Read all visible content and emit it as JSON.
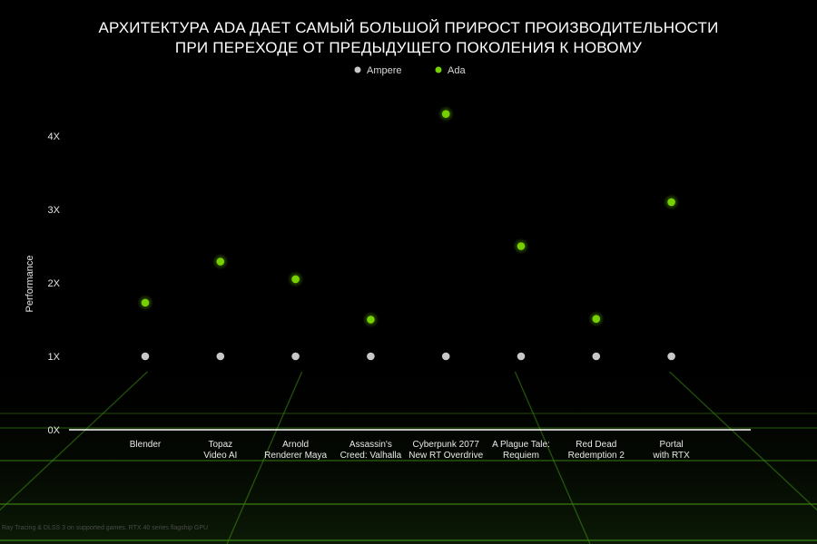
{
  "title": [
    "АРХИТЕКТУРА ADA ДАЕТ САМЫЙ БОЛЬШОЙ ПРИРОСТ ПРОИЗВОДИТЕЛЬНОСТИ",
    "ПРИ ПЕРЕХОДЕ ОТ ПРЕДЫДУЩЕГО ПОКОЛЕНИЯ К НОВОМУ"
  ],
  "footnote": "Ray Tracing & DLSS 3 on supported games. RTX 40 series flagship GPU",
  "colors": {
    "background": "#000000",
    "ampere": "#c8c8c8",
    "ada": "#76d000",
    "grid": "#3c8a14",
    "axis": "#ffffff"
  },
  "chart_data": {
    "type": "scatter",
    "ylabel": "Performance",
    "xlabel": "",
    "ylim": [
      0,
      4.5
    ],
    "yticks": [
      {
        "value": 0,
        "label": "0X"
      },
      {
        "value": 1,
        "label": "1X"
      },
      {
        "value": 2,
        "label": "2X"
      },
      {
        "value": 3,
        "label": "3X"
      },
      {
        "value": 4,
        "label": "4X"
      }
    ],
    "categories": [
      [
        "Blender"
      ],
      [
        "Topaz",
        "Video AI"
      ],
      [
        "Arnold",
        "Renderer Maya"
      ],
      [
        "Assassin's",
        "Creed: Valhalla"
      ],
      [
        "Cyberpunk 2077",
        "New RT Overdrive"
      ],
      [
        "A Plague Tale:",
        "Requiem"
      ],
      [
        "Red Dead",
        "Redemption 2"
      ],
      [
        "Portal",
        "with RTX"
      ]
    ],
    "series": [
      {
        "name": "Ampere",
        "color": "#c8c8c8",
        "values": [
          1,
          1,
          1,
          1,
          1,
          1,
          1,
          1
        ]
      },
      {
        "name": "Ada",
        "color": "#76d000",
        "values": [
          1.73,
          2.29,
          2.05,
          1.5,
          4.3,
          2.5,
          1.51,
          3.1
        ]
      }
    ],
    "legend": "top-center",
    "grid": false
  }
}
